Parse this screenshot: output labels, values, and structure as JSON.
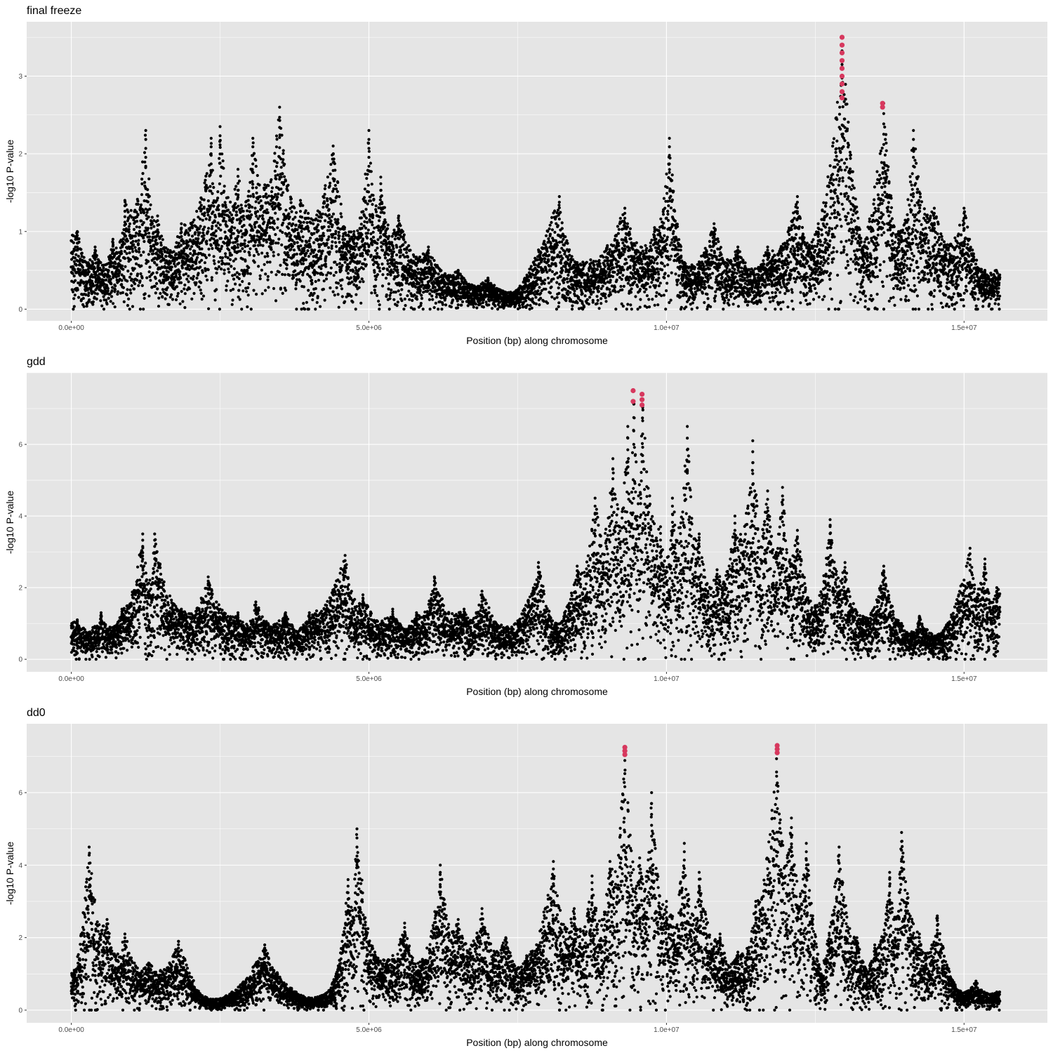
{
  "colors": {
    "panel_background": "#E5E5E5",
    "grid": "#FFFFFF",
    "point": "#000000",
    "highlight": "#D7385E",
    "tick_text": "#4D4D4D"
  },
  "chart_data": [
    {
      "type": "scatter",
      "title": "final freeze",
      "xlabel": "Position (bp) along chromosome",
      "ylabel": "-log10 P-value",
      "xlim": [
        -750000,
        16400000
      ],
      "ylim": [
        -0.15,
        3.7
      ],
      "x_ticks": [
        0,
        5000000,
        10000000,
        15000000
      ],
      "x_tick_labels": [
        "0.0e+00",
        "5.0e+06",
        "1.0e+07",
        "1.5e+07"
      ],
      "y_ticks": [
        0,
        1,
        2,
        3
      ],
      "y_tick_labels": [
        "0",
        "1",
        "2",
        "3"
      ],
      "grid": true,
      "x_range": [
        0,
        15600000
      ],
      "peaks": [
        {
          "x": 100000,
          "y": 1.0
        },
        {
          "x": 400000,
          "y": 0.8
        },
        {
          "x": 700000,
          "y": 0.9
        },
        {
          "x": 900000,
          "y": 1.4
        },
        {
          "x": 1250000,
          "y": 2.3
        },
        {
          "x": 1450000,
          "y": 1.2
        },
        {
          "x": 1850000,
          "y": 1.1
        },
        {
          "x": 2350000,
          "y": 2.2
        },
        {
          "x": 2500000,
          "y": 2.35
        },
        {
          "x": 2800000,
          "y": 1.8
        },
        {
          "x": 3050000,
          "y": 2.2
        },
        {
          "x": 3500000,
          "y": 2.6
        },
        {
          "x": 3850000,
          "y": 1.4
        },
        {
          "x": 4400000,
          "y": 2.1
        },
        {
          "x": 4750000,
          "y": 1.0
        },
        {
          "x": 5000000,
          "y": 2.3
        },
        {
          "x": 5200000,
          "y": 1.7
        },
        {
          "x": 5500000,
          "y": 1.2
        },
        {
          "x": 6000000,
          "y": 0.8
        },
        {
          "x": 6500000,
          "y": 0.5
        },
        {
          "x": 7000000,
          "y": 0.4
        },
        {
          "x": 7500000,
          "y": 0.25
        },
        {
          "x": 8200000,
          "y": 1.45
        },
        {
          "x": 8500000,
          "y": 0.6
        },
        {
          "x": 9300000,
          "y": 1.3
        },
        {
          "x": 9800000,
          "y": 1.05
        },
        {
          "x": 10050000,
          "y": 2.2
        },
        {
          "x": 10300000,
          "y": 0.6
        },
        {
          "x": 10800000,
          "y": 1.1
        },
        {
          "x": 11200000,
          "y": 0.8
        },
        {
          "x": 11700000,
          "y": 0.8
        },
        {
          "x": 12200000,
          "y": 1.45
        },
        {
          "x": 12550000,
          "y": 1.1
        },
        {
          "x": 12950000,
          "y": 3.5
        },
        {
          "x": 13300000,
          "y": 0.8
        },
        {
          "x": 13650000,
          "y": 2.65
        },
        {
          "x": 13900000,
          "y": 1.0
        },
        {
          "x": 14150000,
          "y": 2.3
        },
        {
          "x": 14500000,
          "y": 1.3
        },
        {
          "x": 15000000,
          "y": 1.3
        },
        {
          "x": 15350000,
          "y": 0.5
        }
      ],
      "highlight_points": [
        {
          "x": 12950000,
          "y": [
            2.72,
            2.8,
            2.9,
            3.0,
            3.1,
            3.2,
            3.3,
            3.4,
            3.5
          ]
        },
        {
          "x": 13630000,
          "y": [
            2.6,
            2.65
          ]
        }
      ]
    },
    {
      "type": "scatter",
      "title": "gdd",
      "xlabel": "Position (bp) along chromosome",
      "ylabel": "-log10 P-value",
      "xlim": [
        -750000,
        16400000
      ],
      "ylim": [
        -0.35,
        8.0
      ],
      "x_ticks": [
        0,
        5000000,
        10000000,
        15000000
      ],
      "x_tick_labels": [
        "0.0e+00",
        "5.0e+06",
        "1.0e+07",
        "1.5e+07"
      ],
      "y_ticks": [
        0,
        2,
        4,
        6
      ],
      "y_tick_labels": [
        "0",
        "2",
        "4",
        "6"
      ],
      "grid": true,
      "x_range": [
        0,
        15600000
      ],
      "peaks": [
        {
          "x": 100000,
          "y": 1.1
        },
        {
          "x": 500000,
          "y": 1.3
        },
        {
          "x": 850000,
          "y": 1.4
        },
        {
          "x": 1200000,
          "y": 3.5
        },
        {
          "x": 1400000,
          "y": 3.5
        },
        {
          "x": 1850000,
          "y": 1.4
        },
        {
          "x": 2300000,
          "y": 2.3
        },
        {
          "x": 2800000,
          "y": 1.3
        },
        {
          "x": 3100000,
          "y": 1.6
        },
        {
          "x": 3600000,
          "y": 1.3
        },
        {
          "x": 4000000,
          "y": 1.3
        },
        {
          "x": 4600000,
          "y": 2.9
        },
        {
          "x": 4900000,
          "y": 1.8
        },
        {
          "x": 5400000,
          "y": 1.4
        },
        {
          "x": 5800000,
          "y": 1.3
        },
        {
          "x": 6100000,
          "y": 2.3
        },
        {
          "x": 6600000,
          "y": 1.4
        },
        {
          "x": 6900000,
          "y": 1.9
        },
        {
          "x": 7400000,
          "y": 0.9
        },
        {
          "x": 7850000,
          "y": 2.7
        },
        {
          "x": 8150000,
          "y": 1.0
        },
        {
          "x": 8500000,
          "y": 2.6
        },
        {
          "x": 8800000,
          "y": 4.5
        },
        {
          "x": 9100000,
          "y": 5.6
        },
        {
          "x": 9350000,
          "y": 6.5
        },
        {
          "x": 9450000,
          "y": 7.5
        },
        {
          "x": 9600000,
          "y": 7.4
        },
        {
          "x": 9900000,
          "y": 3.7
        },
        {
          "x": 10100000,
          "y": 4.5
        },
        {
          "x": 10350000,
          "y": 6.5
        },
        {
          "x": 10550000,
          "y": 3.5
        },
        {
          "x": 10850000,
          "y": 2.5
        },
        {
          "x": 11150000,
          "y": 4.0
        },
        {
          "x": 11450000,
          "y": 6.1
        },
        {
          "x": 11700000,
          "y": 4.7
        },
        {
          "x": 11950000,
          "y": 4.8
        },
        {
          "x": 12200000,
          "y": 3.6
        },
        {
          "x": 12500000,
          "y": 1.5
        },
        {
          "x": 12750000,
          "y": 3.9
        },
        {
          "x": 13000000,
          "y": 2.7
        },
        {
          "x": 13300000,
          "y": 1.2
        },
        {
          "x": 13650000,
          "y": 2.6
        },
        {
          "x": 13950000,
          "y": 1.0
        },
        {
          "x": 14250000,
          "y": 1.2
        },
        {
          "x": 14650000,
          "y": 0.8
        },
        {
          "x": 15100000,
          "y": 3.1
        },
        {
          "x": 15350000,
          "y": 2.8
        },
        {
          "x": 15550000,
          "y": 2.0
        }
      ],
      "highlight_points": [
        {
          "x": 9440000,
          "y": [
            7.2,
            7.5
          ]
        },
        {
          "x": 9590000,
          "y": [
            7.1,
            7.25,
            7.4
          ]
        }
      ]
    },
    {
      "type": "scatter",
      "title": "dd0",
      "xlabel": "Position (bp) along chromosome",
      "ylabel": "-log10 P-value",
      "xlim": [
        -750000,
        16400000
      ],
      "ylim": [
        -0.35,
        7.9
      ],
      "x_ticks": [
        0,
        5000000,
        10000000,
        15000000
      ],
      "x_tick_labels": [
        "0.0e+00",
        "5.0e+06",
        "1.0e+07",
        "1.5e+07"
      ],
      "y_ticks": [
        0,
        2,
        4,
        6
      ],
      "y_tick_labels": [
        "0",
        "2",
        "4",
        "6"
      ],
      "grid": true,
      "x_range": [
        0,
        15600000
      ],
      "peaks": [
        {
          "x": 50000,
          "y": 1.1
        },
        {
          "x": 300000,
          "y": 4.5
        },
        {
          "x": 600000,
          "y": 2.5
        },
        {
          "x": 900000,
          "y": 2.1
        },
        {
          "x": 1300000,
          "y": 1.3
        },
        {
          "x": 1800000,
          "y": 1.9
        },
        {
          "x": 2200000,
          "y": 0.4
        },
        {
          "x": 2700000,
          "y": 0.5
        },
        {
          "x": 3250000,
          "y": 1.8
        },
        {
          "x": 3700000,
          "y": 0.6
        },
        {
          "x": 4200000,
          "y": 0.4
        },
        {
          "x": 4450000,
          "y": 1.0
        },
        {
          "x": 4650000,
          "y": 3.6
        },
        {
          "x": 4800000,
          "y": 5.0
        },
        {
          "x": 5100000,
          "y": 1.6
        },
        {
          "x": 5600000,
          "y": 2.4
        },
        {
          "x": 5900000,
          "y": 1.4
        },
        {
          "x": 6200000,
          "y": 4.0
        },
        {
          "x": 6500000,
          "y": 2.5
        },
        {
          "x": 6900000,
          "y": 2.8
        },
        {
          "x": 7300000,
          "y": 2.0
        },
        {
          "x": 7650000,
          "y": 1.5
        },
        {
          "x": 8100000,
          "y": 4.1
        },
        {
          "x": 8450000,
          "y": 2.8
        },
        {
          "x": 8750000,
          "y": 3.7
        },
        {
          "x": 9050000,
          "y": 4.1
        },
        {
          "x": 9300000,
          "y": 7.25
        },
        {
          "x": 9550000,
          "y": 4.2
        },
        {
          "x": 9750000,
          "y": 6.0
        },
        {
          "x": 10000000,
          "y": 3.0
        },
        {
          "x": 10300000,
          "y": 4.6
        },
        {
          "x": 10550000,
          "y": 3.8
        },
        {
          "x": 10900000,
          "y": 2.1
        },
        {
          "x": 11200000,
          "y": 1.6
        },
        {
          "x": 11500000,
          "y": 3.0
        },
        {
          "x": 11850000,
          "y": 7.3
        },
        {
          "x": 12100000,
          "y": 5.3
        },
        {
          "x": 12350000,
          "y": 4.6
        },
        {
          "x": 12600000,
          "y": 1.0
        },
        {
          "x": 12900000,
          "y": 4.5
        },
        {
          "x": 13200000,
          "y": 2.0
        },
        {
          "x": 13500000,
          "y": 1.8
        },
        {
          "x": 13750000,
          "y": 3.8
        },
        {
          "x": 13950000,
          "y": 4.9
        },
        {
          "x": 14250000,
          "y": 2.1
        },
        {
          "x": 14550000,
          "y": 2.6
        },
        {
          "x": 14850000,
          "y": 0.7
        },
        {
          "x": 15200000,
          "y": 0.8
        },
        {
          "x": 15550000,
          "y": 0.5
        }
      ],
      "highlight_points": [
        {
          "x": 9300000,
          "y": [
            7.05,
            7.15,
            7.25
          ]
        },
        {
          "x": 11860000,
          "y": [
            7.1,
            7.2,
            7.3
          ]
        }
      ]
    }
  ]
}
